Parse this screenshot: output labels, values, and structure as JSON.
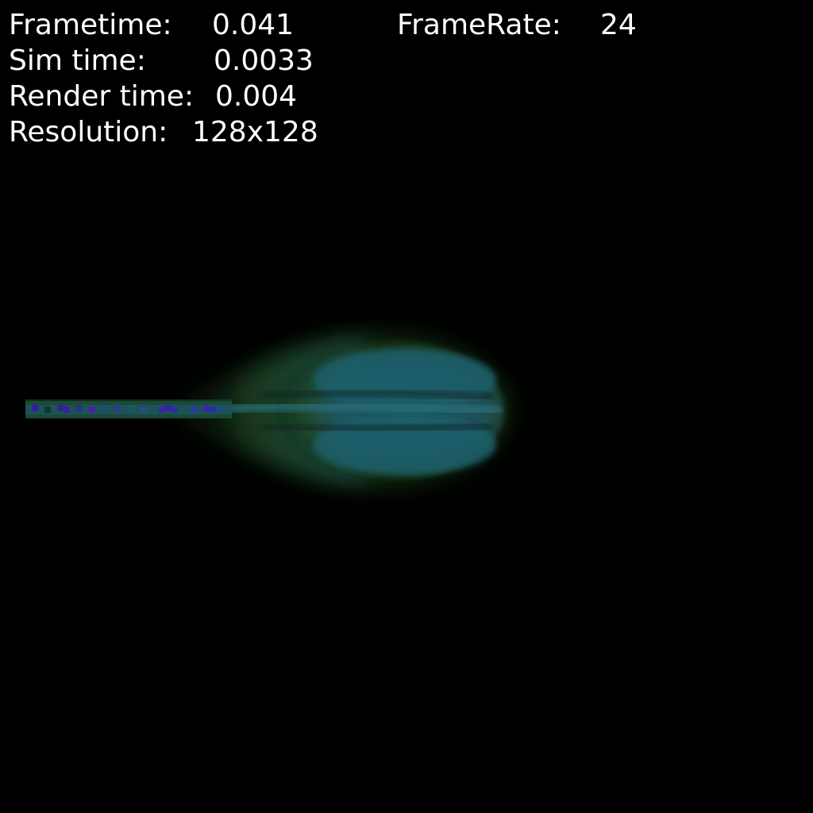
{
  "hud": {
    "frametime_label": "Frametime:",
    "frametime_value": "0.041",
    "framerate_label": "FrameRate:",
    "framerate_value": "24",
    "simtime_label": "Sim time:",
    "simtime_value": "0.0033",
    "rendertime_label": "Render time:",
    "rendertime_value": "0.004",
    "resolution_label": "Resolution:",
    "resolution_value": "128x128"
  },
  "colors": {
    "background": "#000000",
    "text": "#ffffff",
    "fluid_core": "#1f5a64",
    "fluid_edge": "#2c6b2f",
    "jet_purple": "#4a1fa8"
  }
}
